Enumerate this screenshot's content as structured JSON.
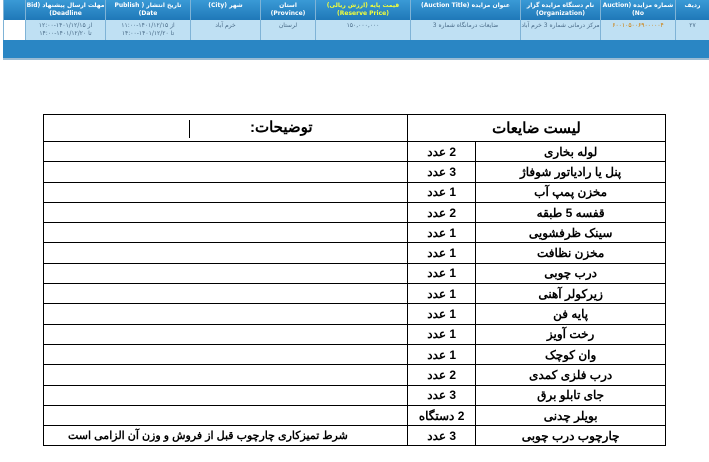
{
  "grid": {
    "headers": [
      "ردیف",
      "شماره مزایده (Auction No)",
      "نام دستگاه مزایده گزار (Organization)",
      "عنوان مزایده (Auction Title)",
      "قیمت پایه (ارزش ریالی) (Reserve Price)",
      "استان (Province)",
      "شهر (City)",
      "تاریخ انتشار ( Publish Date)",
      "مهلت ارسال پیشنهاد (Bid Deadline)"
    ],
    "row": {
      "index": "۲۷",
      "auction_no": "۶۰۰۱۰۵۰۰۶۹۰۰۰۰۰۴",
      "organization": "مرکز درمانی شماره 3 خرم آباد",
      "title": "ضایعات درمانگاه شماره 3",
      "reserve_price": "۱۵۰,۰۰۰,۰۰۰",
      "province": "لرستان",
      "city": "خرم آباد",
      "publish_from": "از ۱۴۰۱/۱۲/۱۵-۱۱:۰۰",
      "publish_to": "تا ۱۴۰۱/۱۲/۲۰-۱۴:۰۰",
      "deadline_from": "از ۱۴۰۱/۱۲/۱۵-۱۲:۰۰",
      "deadline_to": "تا ۱۴۰۱/۱۲/۲۰-۱۴:۰۰"
    }
  },
  "list": {
    "header_items": "لیست ضایعات",
    "header_notes": "توضیحات:",
    "items": [
      {
        "name": "لوله بخاری",
        "qty": "2 عدد",
        "note": ""
      },
      {
        "name": "پنل یا رادیاتور شوفاژ",
        "qty": "3 عدد",
        "note": ""
      },
      {
        "name": "مخزن پمپ آب",
        "qty": "1 عدد",
        "note": ""
      },
      {
        "name": "قفسه 5 طبقه",
        "qty": "2 عدد",
        "note": ""
      },
      {
        "name": "سینک ظرفشویی",
        "qty": "1 عدد",
        "note": ""
      },
      {
        "name": "مخزن نظافت",
        "qty": "1 عدد",
        "note": ""
      },
      {
        "name": "درب چوبی",
        "qty": "1 عدد",
        "note": ""
      },
      {
        "name": "زیرکولر آهنی",
        "qty": "1 عدد",
        "note": ""
      },
      {
        "name": "پایه فن",
        "qty": "1 عدد",
        "note": ""
      },
      {
        "name": "رخت آویز",
        "qty": "1 عدد",
        "note": ""
      },
      {
        "name": "وان کوچک",
        "qty": "1 عدد",
        "note": ""
      },
      {
        "name": "درب فلزی کمدی",
        "qty": "2 عدد",
        "note": ""
      },
      {
        "name": "جای تابلو برق",
        "qty": "3 عدد",
        "note": ""
      },
      {
        "name": "بویلر چدنی",
        "qty": "2 دستگاه",
        "note": ""
      },
      {
        "name": "چارچوب درب چوبی",
        "qty": "3 عدد",
        "note": "شرط تمیزکاری چارچوب قبل از فروش و وزن آن الزامی است"
      }
    ]
  }
}
